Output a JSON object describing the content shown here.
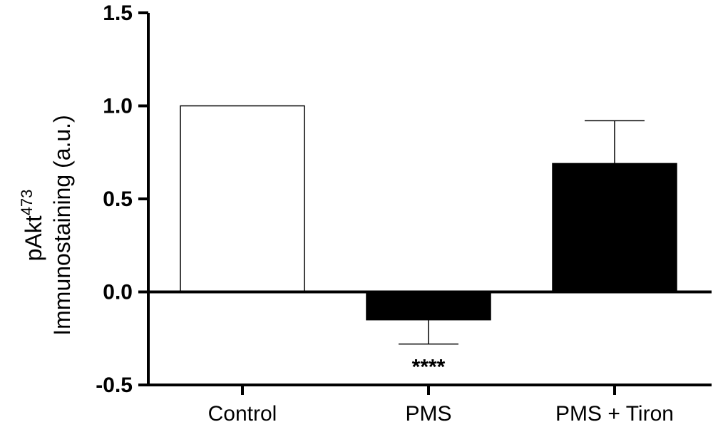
{
  "chart_data": {
    "type": "bar",
    "categories": [
      "Control",
      "PMS",
      "PMS + Tiron"
    ],
    "values": [
      1.0,
      -0.15,
      0.69
    ],
    "error_plus": [
      0,
      0.13,
      0.23
    ],
    "error_direction": [
      "none",
      "down",
      "up"
    ],
    "bar_fill": [
      "#ffffff",
      "#000000",
      "#000000"
    ],
    "annotations": [
      "",
      "****",
      ""
    ],
    "ylabel_line1": "pAkt",
    "ylabel_sup": "473",
    "ylabel_line2": "Immunostaining (a.u.)",
    "ylim": [
      -0.5,
      1.5
    ],
    "yticks": [
      -0.5,
      0.0,
      0.5,
      1.0,
      1.5
    ],
    "ytick_labels": [
      "-0.5",
      "0.0",
      "0.5",
      "1.0",
      "1.5"
    ],
    "grid": false,
    "legend": "none"
  }
}
